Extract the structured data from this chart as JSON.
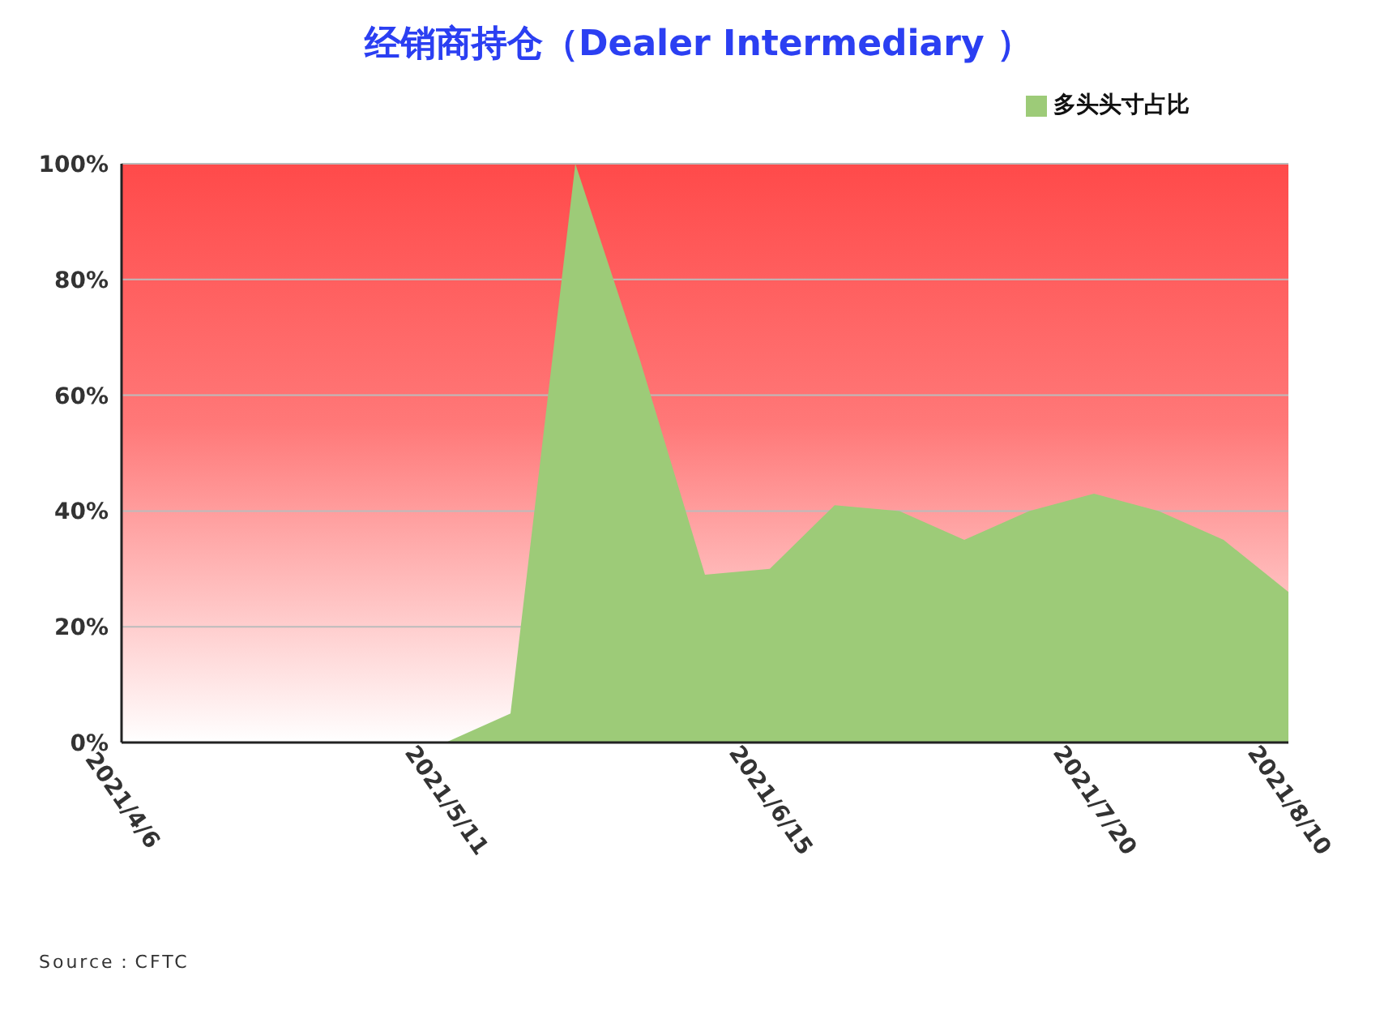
{
  "chart_data": {
    "type": "area",
    "title": "经销商持仓（Dealer Intermediary ）",
    "categories": [
      "2021/4/6",
      null,
      null,
      null,
      null,
      "2021/5/11",
      null,
      null,
      null,
      null,
      "2021/6/15",
      null,
      null,
      null,
      null,
      "2021/7/20",
      null,
      null,
      "2021/8/10"
    ],
    "series": [
      {
        "name": "多头头寸占比",
        "color": "#9dcb78",
        "values": [
          0,
          0,
          0,
          0,
          0,
          0,
          5,
          100,
          66,
          29,
          30,
          41,
          40,
          35,
          40,
          43,
          40,
          35,
          26
        ]
      }
    ],
    "ylim": [
      0,
      100
    ],
    "yticks": [
      {
        "value": 0,
        "label": "0%"
      },
      {
        "value": 20,
        "label": "20%"
      },
      {
        "value": 40,
        "label": "40%"
      },
      {
        "value": 60,
        "label": "60%"
      },
      {
        "value": 80,
        "label": "80%"
      },
      {
        "value": 100,
        "label": "100%"
      }
    ],
    "grid": "y",
    "legend": "top right",
    "annotations": [
      "Source：CFTC"
    ]
  }
}
